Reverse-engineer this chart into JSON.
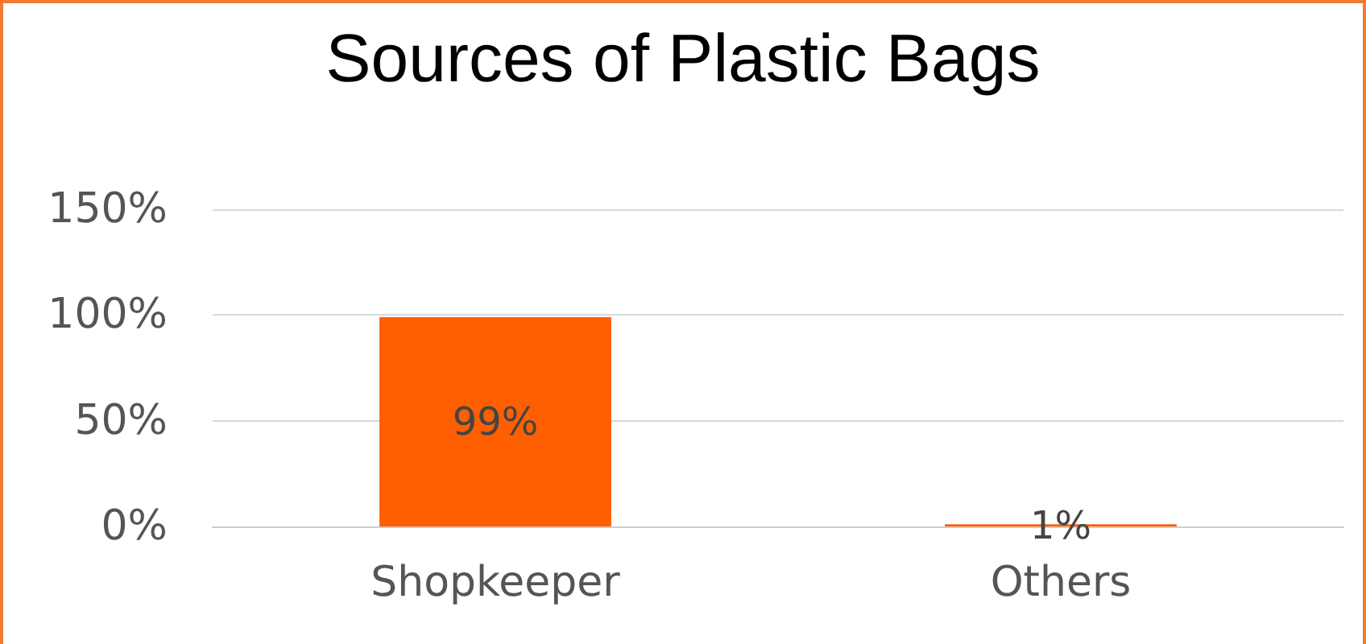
{
  "chart_data": {
    "type": "bar",
    "title": "Sources of Plastic Bags",
    "categories": [
      "Shopkeeper",
      "Others"
    ],
    "values": [
      99,
      1
    ],
    "value_labels": [
      "99%",
      "1%"
    ],
    "color": "#ff5f00",
    "ylim": [
      0,
      150
    ],
    "yticks": [
      {
        "value": 0,
        "label": "0%"
      },
      {
        "value": 50,
        "label": "50%"
      },
      {
        "value": 100,
        "label": "100%"
      },
      {
        "value": 150,
        "label": "150%"
      }
    ],
    "grid": "y"
  }
}
